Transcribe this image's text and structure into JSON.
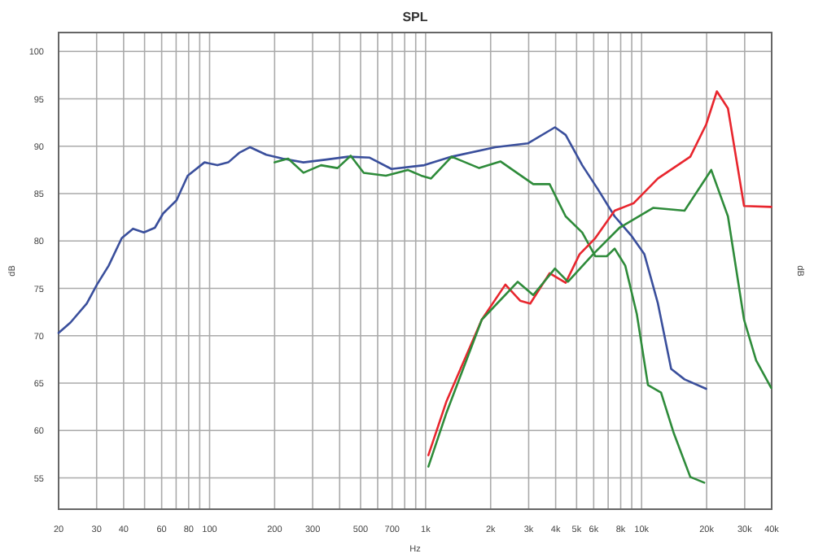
{
  "chart_data": {
    "type": "line",
    "title": "SPL",
    "xlabel": "Hz",
    "ylabel": "dB",
    "y2label": "dB",
    "log": "x",
    "grid": true,
    "marker": "none",
    "line_style": "solid",
    "xlim": [
      20,
      40000
    ],
    "ylim": [
      51.7,
      102
    ],
    "xticks": [
      20,
      30,
      40,
      {
        "value": 50,
        "label": null
      },
      60,
      {
        "value": 70,
        "label": null
      },
      80,
      {
        "value": 90,
        "label": null
      },
      100,
      200,
      300,
      {
        "value": 400,
        "label": null
      },
      500,
      {
        "value": 600,
        "label": null
      },
      700,
      {
        "value": 800,
        "label": null
      },
      {
        "value": 900,
        "label": null
      },
      {
        "value": 1000,
        "label": "1k"
      },
      {
        "value": 2000,
        "label": "2k"
      },
      {
        "value": 3000,
        "label": "3k"
      },
      {
        "value": 4000,
        "label": "4k"
      },
      {
        "value": 5000,
        "label": "5k"
      },
      {
        "value": 6000,
        "label": "6k"
      },
      {
        "value": 7000,
        "label": null
      },
      {
        "value": 8000,
        "label": "8k"
      },
      {
        "value": 9000,
        "label": null
      },
      {
        "value": 10000,
        "label": "10k"
      },
      {
        "value": 20000,
        "label": "20k"
      },
      {
        "value": 30000,
        "label": "30k"
      },
      {
        "value": 40000,
        "label": "40k"
      }
    ],
    "yticks": [
      55,
      60,
      65,
      70,
      75,
      80,
      85,
      90,
      95,
      100
    ],
    "series": [
      {
        "color": "#3a4f9c",
        "x": [
          20,
          22.7,
          27,
          30.1,
          34.1,
          39.2,
          44.2,
          49.6,
          55.8,
          60.9,
          70.3,
          79.2,
          94.7,
          108.7,
          122,
          137,
          154,
          183,
          218,
          272,
          348,
          438,
          551,
          695,
          985,
          1320,
          2100,
          2970,
          3970,
          4450,
          5310,
          6300,
          7500,
          8940,
          10300,
          11900,
          13700,
          15800,
          19900
        ],
        "values": [
          70.3,
          71.4,
          73.4,
          75.4,
          77.4,
          80.3,
          81.3,
          80.9,
          81.4,
          82.9,
          84.3,
          86.9,
          88.3,
          88,
          88.3,
          89.3,
          89.9,
          89.1,
          88.7,
          88.3,
          88.6,
          88.9,
          88.8,
          87.6,
          88,
          88.9,
          89.9,
          90.3,
          92,
          91.2,
          88,
          85.4,
          82.6,
          80.6,
          78.6,
          73.4,
          66.5,
          65.4,
          64.4
        ]
      },
      {
        "color": "#2e8b3a",
        "x": [
          200,
          231,
          272,
          328,
          391,
          450,
          517,
          655,
          827,
          954,
          1060,
          1320,
          1770,
          2220,
          3150,
          3750,
          4450,
          5310,
          6100,
          6900,
          7500,
          8400,
          9500,
          10700,
          12300,
          14100,
          16800,
          19500
        ],
        "values": [
          88.3,
          88.7,
          87.2,
          88,
          87.7,
          89,
          87.2,
          86.9,
          87.5,
          86.9,
          86.6,
          88.9,
          87.7,
          88.4,
          86,
          86,
          82.6,
          80.9,
          78.4,
          78.4,
          79.2,
          77.4,
          72.3,
          64.8,
          64,
          59.7,
          55.1,
          54.5
        ]
      },
      {
        "color": "#e8262e",
        "x": [
          1030,
          1250,
          1820,
          2340,
          2740,
          3050,
          3750,
          4450,
          5160,
          6100,
          7500,
          9200,
          11900,
          16800,
          19900,
          22300,
          25100,
          29800,
          39800
        ],
        "values": [
          57.4,
          63.1,
          71.7,
          75.4,
          73.7,
          73.4,
          76.6,
          75.6,
          78.6,
          80.3,
          83.2,
          84,
          86.6,
          88.9,
          92.3,
          95.8,
          94,
          83.7,
          83.6
        ]
      },
      {
        "color": "#2e8b3a",
        "x": [
          1030,
          1250,
          1820,
          2670,
          3150,
          3970,
          4560,
          5960,
          7900,
          11300,
          15800,
          21000,
          25100,
          29800,
          33900,
          39800
        ],
        "values": [
          56.2,
          61.9,
          71.7,
          75.7,
          74.3,
          77.1,
          75.7,
          78.6,
          81.4,
          83.5,
          83.2,
          87.5,
          82.6,
          71.7,
          67.4,
          64.5
        ]
      }
    ]
  }
}
